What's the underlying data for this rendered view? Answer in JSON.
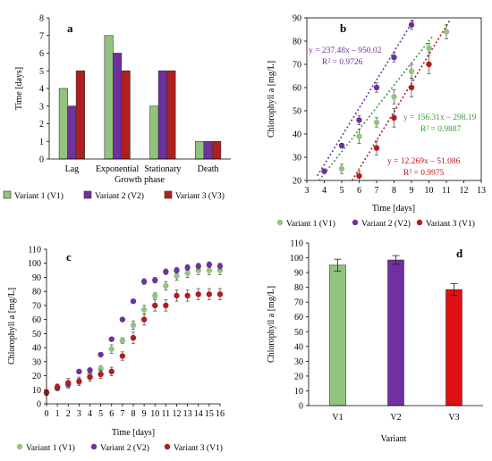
{
  "colors": {
    "v1": "#93c47d",
    "v2": "#7030a0",
    "v3": "#b01e1e",
    "v3bar": "#e01010"
  },
  "panel_a": {
    "label": "a",
    "ylabel": "Time [days]",
    "xlabel": "Growth phase",
    "legend": [
      "Variant 1 (V1)",
      "Variant 2 (V2)",
      "Variant 3 (V3)"
    ],
    "yticks": [
      "0",
      "1",
      "2",
      "3",
      "4",
      "5",
      "6",
      "7",
      "8"
    ],
    "categories": [
      "Lag",
      "Exponential",
      "Stationary",
      "Death"
    ]
  },
  "panel_b": {
    "label": "b",
    "ylabel": "Chlorophyll a [mg/L]",
    "xlabel": "Time [days]",
    "legend": [
      "Variant 1 (V1)",
      "Variant 2 (V2)",
      "Variant 3 (V1)"
    ],
    "xticks": [
      "3",
      "4",
      "5",
      "6",
      "7",
      "8",
      "9",
      "10",
      "11",
      "12",
      "13"
    ],
    "yticks": [
      "20",
      "30",
      "40",
      "50",
      "60",
      "70",
      "80",
      "90"
    ],
    "eq1": "y = 237.48x – 950.02",
    "r1": "R² = 0.9726",
    "eq2": "y = 156.31x – 298.19",
    "r2": "R² = 0.9887",
    "eq3": "y = 12.269x – 51.086",
    "r3": "R² = 0.9975"
  },
  "panel_c": {
    "label": "c",
    "ylabel": "Chlorophyll a [mg/L]",
    "xlabel": "Time [days]",
    "legend": [
      "Variant 1 (V1)",
      "Variant 2 (V2)",
      "Variant 3 (V1)"
    ],
    "xticks": [
      "0",
      "1",
      "2",
      "3",
      "4",
      "5",
      "6",
      "7",
      "8",
      "9",
      "10",
      "11",
      "12",
      "13",
      "14",
      "15",
      "16"
    ],
    "yticks": [
      "0",
      "10",
      "20",
      "30",
      "40",
      "50",
      "60",
      "70",
      "80",
      "90",
      "100",
      "110"
    ]
  },
  "panel_d": {
    "label": "d",
    "ylabel": "Chlorophyll a [mg/L]",
    "xlabel": "Variant",
    "categories": [
      "V1",
      "V2",
      "V3"
    ],
    "yticks": [
      "0",
      "10",
      "20",
      "30",
      "40",
      "50",
      "60",
      "70",
      "80",
      "90",
      "100",
      "110"
    ]
  },
  "chart_data": [
    {
      "type": "bar",
      "categories": [
        "Lag",
        "Exponential",
        "Stationary",
        "Death"
      ],
      "series": [
        {
          "name": "Variant 1 (V1)",
          "values": [
            4,
            7,
            3,
            1
          ]
        },
        {
          "name": "Variant 2 (V2)",
          "values": [
            3,
            6,
            5,
            1
          ]
        },
        {
          "name": "Variant 3 (V3)",
          "values": [
            5,
            5,
            5,
            1
          ]
        }
      ],
      "xlabel": "Growth phase",
      "ylabel": "Time [days]",
      "ylim": [
        0,
        8
      ]
    },
    {
      "type": "scatter",
      "xlabel": "Time [days]",
      "ylabel": "Chlorophyll a [mg/L]",
      "xlim": [
        3,
        13
      ],
      "ylim": [
        20,
        90
      ],
      "series": [
        {
          "name": "Variant 1 (V1)",
          "x": [
            5,
            6,
            7,
            8,
            9,
            10,
            11
          ],
          "y": [
            25,
            39,
            45,
            56,
            67,
            77,
            84
          ],
          "err": [
            2,
            3,
            2,
            3,
            3,
            2,
            3
          ],
          "trend": [
            16,
            19,
            81
          ]
        },
        {
          "name": "Variant 2 (V2)",
          "x": [
            4,
            5,
            6,
            7,
            8,
            9
          ],
          "y": [
            24,
            35,
            46,
            60,
            73,
            87
          ],
          "err": [
            1,
            1,
            2,
            2,
            2,
            2
          ],
          "trend": [
            22,
            16,
            90
          ]
        },
        {
          "name": "Variant 3 (V1)",
          "x": [
            6,
            7,
            8,
            9,
            10
          ],
          "y": [
            22,
            34,
            47,
            60,
            70
          ],
          "err": [
            2,
            3,
            4,
            4,
            4
          ],
          "trend": [
            14,
            31,
            89
          ]
        }
      ]
    },
    {
      "type": "scatter",
      "xlabel": "Time [days]",
      "ylabel": "Chlorophyll a [mg/L]",
      "xlim": [
        0,
        16
      ],
      "ylim": [
        0,
        110
      ],
      "series": [
        {
          "name": "Variant 1 (V1)",
          "x": [
            0,
            1,
            2,
            3,
            4,
            5,
            6,
            7,
            8,
            9,
            10,
            11,
            12,
            13,
            14,
            15,
            16
          ],
          "y": [
            8,
            12,
            13,
            16,
            21,
            25,
            39,
            45,
            56,
            67,
            77,
            84,
            91,
            93,
            95,
            95,
            95
          ],
          "err": [
            2,
            2,
            2,
            2,
            2,
            2,
            3,
            2,
            3,
            3,
            2,
            3,
            3,
            3,
            3,
            3,
            3
          ]
        },
        {
          "name": "Variant 2 (V2)",
          "x": [
            0,
            1,
            2,
            3,
            4,
            5,
            6,
            7,
            8,
            9,
            10,
            11,
            12,
            13,
            14,
            15,
            16
          ],
          "y": [
            8,
            11,
            14,
            23,
            24,
            35,
            46,
            60,
            73,
            87,
            88,
            94,
            95,
            97,
            98,
            99,
            98
          ],
          "err": [
            1,
            1,
            1,
            1,
            1,
            1,
            1,
            1,
            1,
            2,
            2,
            2,
            2,
            2,
            2,
            2,
            2
          ]
        },
        {
          "name": "Variant 3 (V1)",
          "x": [
            0,
            1,
            2,
            3,
            4,
            5,
            6,
            7,
            8,
            9,
            10,
            11,
            12,
            13,
            14,
            15,
            16
          ],
          "y": [
            8,
            12,
            15,
            16,
            19,
            21,
            23,
            34,
            47,
            60,
            70,
            70,
            77,
            77,
            78,
            78,
            78
          ],
          "err": [
            2,
            2,
            3,
            3,
            3,
            3,
            3,
            3,
            4,
            4,
            4,
            4,
            4,
            4,
            4,
            4,
            4
          ]
        }
      ]
    },
    {
      "type": "bar",
      "categories": [
        "V1",
        "V2",
        "V3"
      ],
      "values": [
        95,
        98.5,
        78.5
      ],
      "errors": [
        4,
        3,
        4
      ],
      "xlabel": "Variant",
      "ylabel": "Chlorophyll a [mg/L]",
      "ylim": [
        0,
        110
      ]
    }
  ]
}
